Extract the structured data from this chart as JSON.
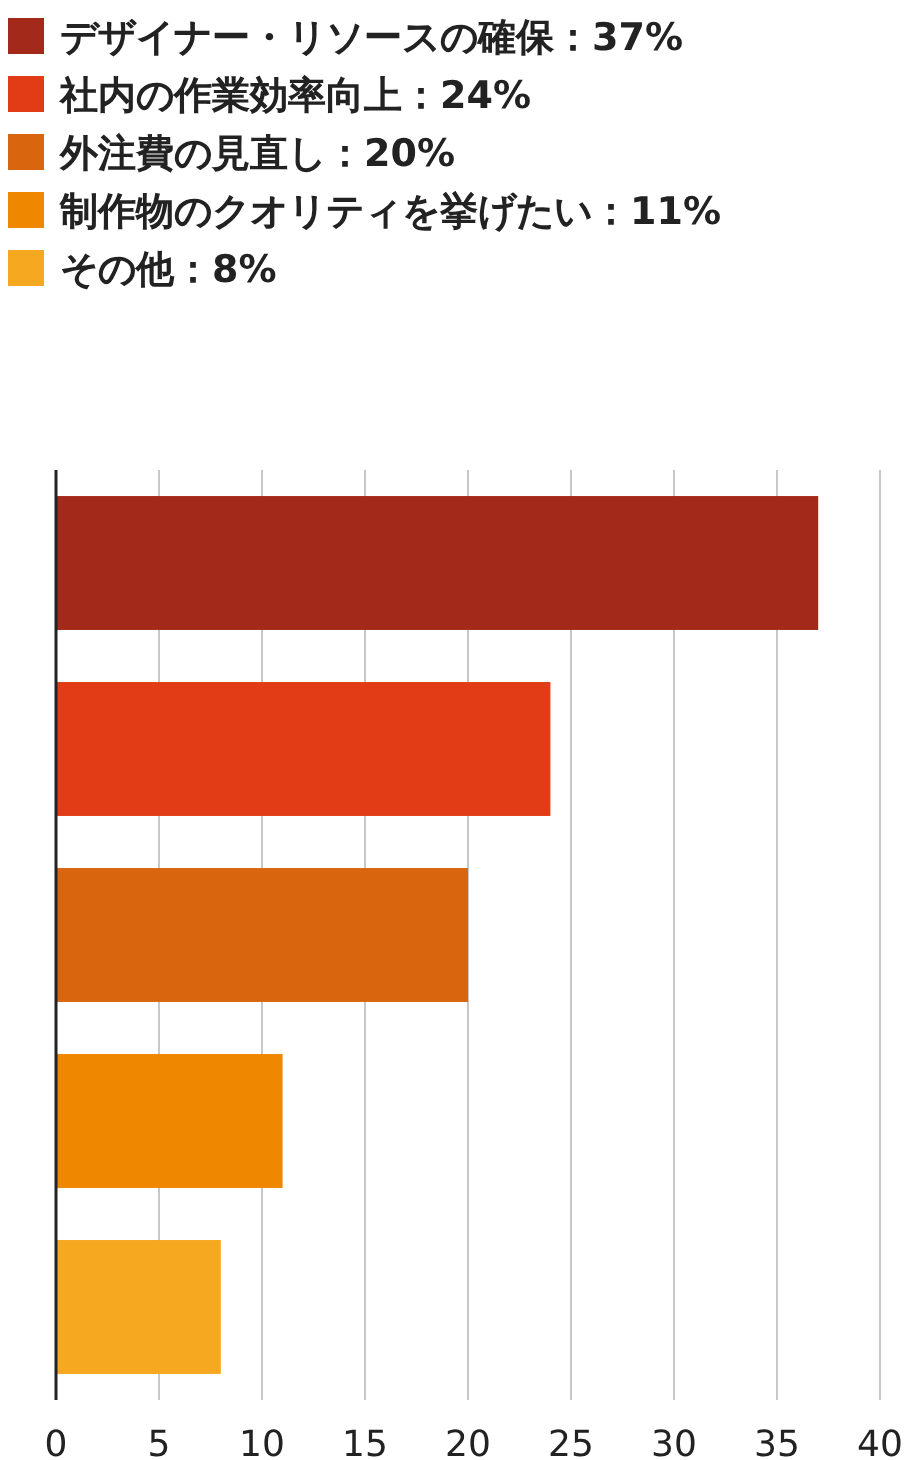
{
  "chart_data": {
    "type": "bar",
    "orientation": "horizontal",
    "stacked": true,
    "categories": [
      null,
      null,
      null,
      null,
      null
    ],
    "series": [
      {
        "name": "デザイナー・リソースの確保：37%",
        "color": "#a3291a",
        "values": [
          37,
          null,
          null,
          null,
          null
        ]
      },
      {
        "name": "社内の作業効率向上：24%",
        "color": "#e23c16",
        "values": [
          null,
          24,
          null,
          null,
          null
        ]
      },
      {
        "name": "外注費の見直し：20%",
        "color": "#d9660e",
        "values": [
          null,
          null,
          20,
          null,
          null
        ]
      },
      {
        "name": "制作物のクオリティを挙げたい：11%",
        "color": "#f08700",
        "values": [
          null,
          null,
          null,
          11,
          null
        ]
      },
      {
        "name": "その他：8%",
        "color": "#f6a821",
        "values": [
          null,
          null,
          null,
          null,
          8
        ]
      }
    ],
    "xlim": [
      0,
      40
    ],
    "xticks": [
      0,
      5,
      10,
      15,
      20,
      25,
      30,
      35,
      40
    ],
    "grid": "x",
    "legend": "top",
    "tick_labels": "x"
  }
}
